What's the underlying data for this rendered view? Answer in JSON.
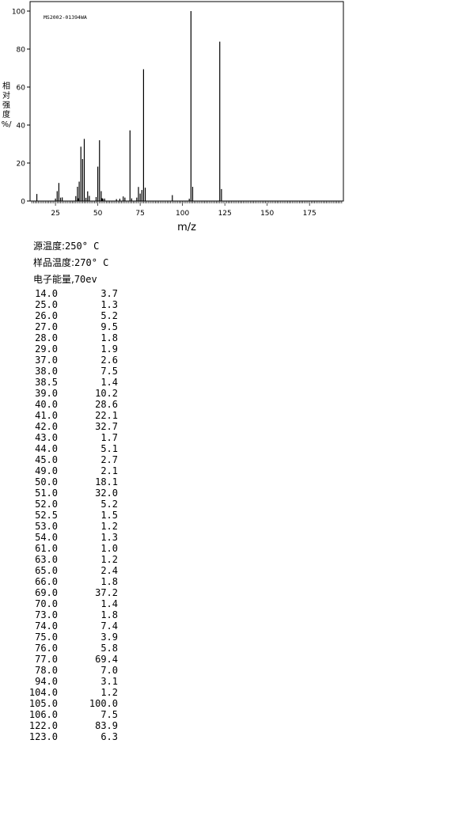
{
  "chart_data": {
    "type": "bar",
    "title": "MS2002-01394WA",
    "xlabel": "m/z",
    "ylabel": "相对强度/%",
    "ylabel_chars": [
      "相",
      "对",
      "强",
      "度",
      "%/"
    ],
    "xlim": [
      10,
      195
    ],
    "ylim": [
      0,
      100
    ],
    "xticks": [
      25,
      50,
      75,
      100,
      125,
      150,
      175
    ],
    "yticks": [
      0,
      20,
      40,
      60,
      80,
      100
    ],
    "grid": false,
    "x": [
      14.0,
      25.0,
      26.0,
      27.0,
      28.0,
      29.0,
      37.0,
      38.0,
      38.5,
      39.0,
      40.0,
      41.0,
      42.0,
      43.0,
      44.0,
      45.0,
      49.0,
      50.0,
      51.0,
      52.0,
      52.5,
      53.0,
      54.0,
      61.0,
      63.0,
      65.0,
      66.0,
      69.0,
      70.0,
      73.0,
      74.0,
      75.0,
      76.0,
      77.0,
      78.0,
      94.0,
      104.0,
      105.0,
      106.0,
      122.0,
      123.0
    ],
    "values": [
      3.7,
      1.3,
      5.2,
      9.5,
      1.8,
      1.9,
      2.6,
      7.5,
      1.4,
      10.2,
      28.6,
      22.1,
      32.7,
      1.7,
      5.1,
      2.7,
      2.1,
      18.1,
      32.0,
      5.2,
      1.5,
      1.2,
      1.3,
      1.0,
      1.2,
      2.4,
      1.8,
      37.2,
      1.4,
      1.8,
      7.4,
      3.9,
      5.8,
      69.4,
      7.0,
      3.1,
      1.2,
      100.0,
      7.5,
      83.9,
      6.3
    ]
  },
  "conditions": {
    "source_temp_label": "源温度:",
    "source_temp_value": "250° C",
    "sample_temp_label": "样品温度:",
    "sample_temp_value": "270° C",
    "energy_label": "电子能量,",
    "energy_value": "70ev"
  },
  "peak_table": [
    [
      "14.0",
      "3.7"
    ],
    [
      "25.0",
      "1.3"
    ],
    [
      "26.0",
      "5.2"
    ],
    [
      "27.0",
      "9.5"
    ],
    [
      "28.0",
      "1.8"
    ],
    [
      "29.0",
      "1.9"
    ],
    [
      "37.0",
      "2.6"
    ],
    [
      "38.0",
      "7.5"
    ],
    [
      "38.5",
      "1.4"
    ],
    [
      "39.0",
      "10.2"
    ],
    [
      "40.0",
      "28.6"
    ],
    [
      "41.0",
      "22.1"
    ],
    [
      "42.0",
      "32.7"
    ],
    [
      "43.0",
      "1.7"
    ],
    [
      "44.0",
      "5.1"
    ],
    [
      "45.0",
      "2.7"
    ],
    [
      "49.0",
      "2.1"
    ],
    [
      "50.0",
      "18.1"
    ],
    [
      "51.0",
      "32.0"
    ],
    [
      "52.0",
      "5.2"
    ],
    [
      "52.5",
      "1.5"
    ],
    [
      "53.0",
      "1.2"
    ],
    [
      "54.0",
      "1.3"
    ],
    [
      "61.0",
      "1.0"
    ],
    [
      "63.0",
      "1.2"
    ],
    [
      "65.0",
      "2.4"
    ],
    [
      "66.0",
      "1.8"
    ],
    [
      "69.0",
      "37.2"
    ],
    [
      "70.0",
      "1.4"
    ],
    [
      "73.0",
      "1.8"
    ],
    [
      "74.0",
      "7.4"
    ],
    [
      "75.0",
      "3.9"
    ],
    [
      "76.0",
      "5.8"
    ],
    [
      "77.0",
      "69.4"
    ],
    [
      "78.0",
      "7.0"
    ],
    [
      "94.0",
      "3.1"
    ],
    [
      "104.0",
      "1.2"
    ],
    [
      "105.0",
      "100.0"
    ],
    [
      "106.0",
      "7.5"
    ],
    [
      "122.0",
      "83.9"
    ],
    [
      "123.0",
      "6.3"
    ]
  ]
}
